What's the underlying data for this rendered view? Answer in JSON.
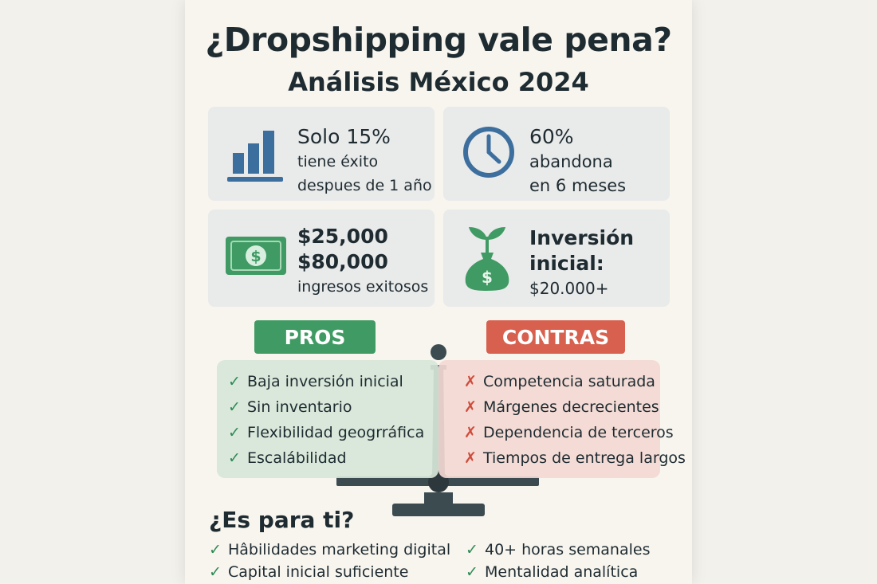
{
  "title": "¿Dropshipping vale pena?",
  "subtitle": "Análisis México 2024",
  "stats": [
    {
      "line1": "Solo 15%",
      "line2": "tiene éxito",
      "line3": "despues de 1 año",
      "icon": "bar-chart-icon"
    },
    {
      "line1": "60%",
      "line2": "abandona",
      "line3": "en 6 meses",
      "icon": "clock-icon"
    },
    {
      "line1": "$25,000",
      "line2": "$80,000",
      "line3": "ingresos exitosos",
      "icon": "banknote-icon"
    },
    {
      "line1": "Inversión",
      "line2": "inicial:",
      "line3": "$20.000+",
      "icon": "money-bag-sprout-icon"
    }
  ],
  "pros": {
    "label": "PROS",
    "items": [
      "Baja inversión inicial",
      "Sin inventario",
      "Flexibilidad geogrráfica",
      "Escalábilidad"
    ]
  },
  "contras": {
    "label": "CONTRAS",
    "items": [
      "Competencia saturada",
      "Márgenes decrecientes",
      "Dependencia de terceros",
      "Tiempos de entrega largos"
    ]
  },
  "fit": {
    "title": "¿Es para ti?",
    "items": [
      "Hâbilidades marketing digital",
      "40+ horas semanales",
      "Capital inicial suficiente",
      "Mentalidad analítica"
    ]
  },
  "colors": {
    "green": "#3f9b63",
    "red": "#d8604f",
    "blue": "#3d6f9e",
    "dark": "#3c4b50"
  }
}
